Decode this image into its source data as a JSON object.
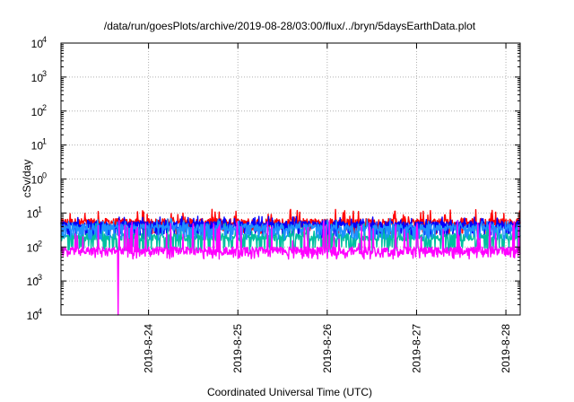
{
  "chart_data": {
    "type": "line",
    "title": "/data/run/goesPlots/archive/2019-08-28/03:00/flux/../bryn/5daysEarthData.plot",
    "xlabel": "Coordinated Universal Time (UTC)",
    "ylabel": "cSv/day",
    "yscale": "log",
    "ylim": [
      0.0001,
      10000
    ],
    "xlim": [
      23.02,
      28.16
    ],
    "x_ticks": [
      {
        "value": 24,
        "label": "2019-8-24"
      },
      {
        "value": 25,
        "label": "2019-8-25"
      },
      {
        "value": 26,
        "label": "2019-8-26"
      },
      {
        "value": 27,
        "label": "2019-8-27"
      },
      {
        "value": 28,
        "label": "2019-8-28"
      }
    ],
    "y_ticks": [
      {
        "value": 0.0001,
        "base": "10",
        "exp": "-4"
      },
      {
        "value": 0.001,
        "base": "10",
        "exp": "-3"
      },
      {
        "value": 0.01,
        "base": "10",
        "exp": "-2"
      },
      {
        "value": 0.1,
        "base": "10",
        "exp": "-1"
      },
      {
        "value": 1,
        "base": "10",
        "exp": "0"
      },
      {
        "value": 10,
        "base": "10",
        "exp": "1"
      },
      {
        "value": 100,
        "base": "10",
        "exp": "2"
      },
      {
        "value": 1000,
        "base": "10",
        "exp": "3"
      },
      {
        "value": 10000,
        "base": "10",
        "exp": "4"
      }
    ],
    "grid": true,
    "series": [
      {
        "color": "#ff0000",
        "base": 0.055,
        "lowdip": 0.03,
        "spike": 0.13
      },
      {
        "color": "#0000ff",
        "base": 0.045,
        "lowdip": 0.022,
        "spike": 0.08
      },
      {
        "color": "#00bfa0",
        "base": 0.02,
        "lowdip": 0.009,
        "spike": 0.05
      },
      {
        "color": "#1e90ff",
        "base": 0.038,
        "lowdip": 0.02,
        "spike": 0.07
      },
      {
        "color": "#ff00ff",
        "base": 0.008,
        "lowdip": 0.0055,
        "spike": 0.06,
        "dropout": {
          "x": 23.66,
          "value": 0.0001
        }
      }
    ]
  }
}
